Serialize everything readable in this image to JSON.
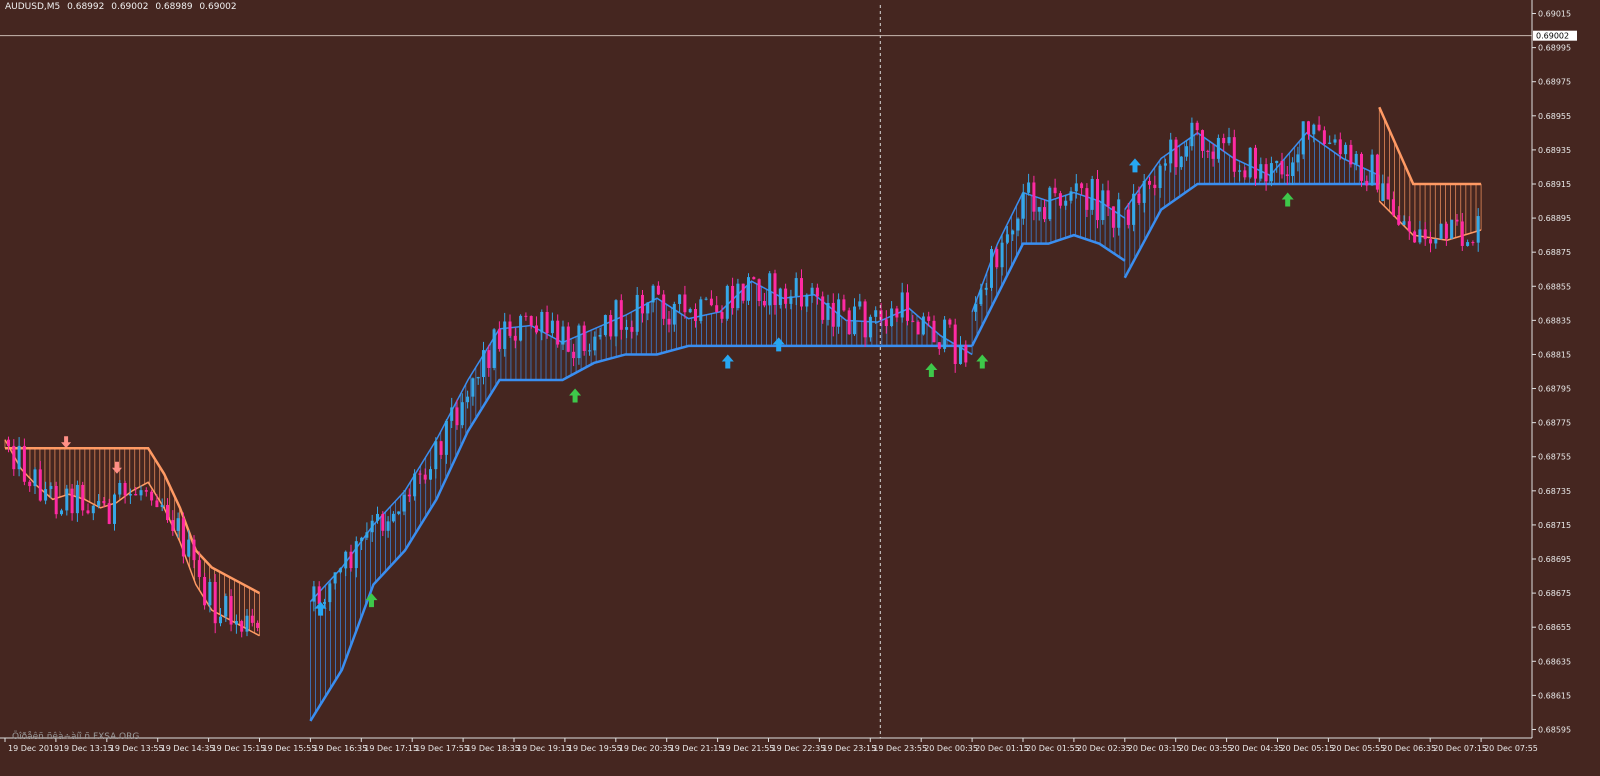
{
  "header": {
    "symbol": "AUDUSD,M5",
    "open": "0.68992",
    "high": "0.69002",
    "low": "0.68989",
    "close": "0.69002"
  },
  "watermark": "Õîðåêñ ñêà÷àíî ñ FXSA.ORG",
  "colors": {
    "background": "#452620",
    "bull_candle": "#35a8e8",
    "bear_candle": "#ff2aa3",
    "upper_band": "#ff9a64",
    "lower_band": "#3a8ef0",
    "arrow_up_green": "#3ec84a",
    "arrow_up_blue": "#27a7f2",
    "arrow_down": "#ff8f86",
    "text": "#e8e8e8"
  },
  "chart_data": {
    "type": "candlestick",
    "symbol": "AUDUSD,M5",
    "current_price": "0.69002",
    "ylim": [
      0.6859,
      0.6902
    ],
    "y_ticks": [
      "0.69015",
      "0.68995",
      "0.68975",
      "0.68955",
      "0.68935",
      "0.68915",
      "0.68895",
      "0.68875",
      "0.68855",
      "0.68835",
      "0.68815",
      "0.68795",
      "0.68775",
      "0.68755",
      "0.68735",
      "0.68715",
      "0.68695",
      "0.68675",
      "0.68655",
      "0.68635",
      "0.68615",
      "0.68595"
    ],
    "x_ticks": [
      "19 Dec 2019",
      "19 Dec 13:15",
      "19 Dec 13:55",
      "19 Dec 14:35",
      "19 Dec 15:15",
      "19 Dec 15:55",
      "19 Dec 16:35",
      "19 Dec 17:15",
      "19 Dec 17:55",
      "19 Dec 18:35",
      "19 Dec 19:15",
      "19 Dec 19:55",
      "19 Dec 20:35",
      "19 Dec 21:15",
      "19 Dec 21:55",
      "19 Dec 22:35",
      "19 Dec 23:15",
      "19 Dec 23:55",
      "20 Dec 00:35",
      "20 Dec 01:15",
      "20 Dec 01:55",
      "20 Dec 02:35",
      "20 Dec 03:15",
      "20 Dec 03:55",
      "20 Dec 04:35",
      "20 Dec 05:15",
      "20 Dec 05:55",
      "20 Dec 06:35",
      "20 Dec 07:15",
      "20 Dec 07:55"
    ],
    "grid": false,
    "crosshair_time": "19 Dec 23:55",
    "trend_bands": [
      {
        "color": "upper",
        "start": "19 Dec 2019",
        "end": "19 Dec 15:55",
        "line": [
          0.68765,
          0.68748,
          0.68738,
          0.6873,
          0.68733,
          0.6873,
          0.68725,
          0.68728,
          0.68735,
          0.6874,
          0.68725,
          0.68705,
          0.6868,
          0.68665,
          0.6866,
          0.68655,
          0.6865
        ],
        "edge": [
          0.6876,
          0.6876,
          0.6876,
          0.6876,
          0.6876,
          0.6876,
          0.6876,
          0.6876,
          0.6876,
          0.6876,
          0.68745,
          0.68725,
          0.687,
          0.6869,
          0.68685,
          0.6868,
          0.68675
        ]
      },
      {
        "color": "lower",
        "start": "19 Dec 16:35",
        "end": "20 Dec 01:15",
        "line": [
          0.6867,
          0.6869,
          0.68715,
          0.68735,
          0.68765,
          0.688,
          0.6883,
          0.68832,
          0.68822,
          0.6883,
          0.68838,
          0.68848,
          0.68836,
          0.6884,
          0.68858,
          0.68848,
          0.6885,
          0.68835,
          0.68834,
          0.68842,
          0.68826,
          0.68815
        ],
        "edge": [
          0.686,
          0.6863,
          0.6868,
          0.687,
          0.6873,
          0.6877,
          0.688,
          0.688,
          0.688,
          0.6881,
          0.68815,
          0.68815,
          0.6882,
          0.6882,
          0.6882,
          0.6882,
          0.6882,
          0.6882,
          0.6882,
          0.6882,
          0.6882,
          0.6882
        ]
      },
      {
        "color": "lower",
        "start": "20 Dec 01:15",
        "end": "20 Dec 03:15",
        "line": [
          0.6884,
          0.6888,
          0.6891,
          0.68905,
          0.6891,
          0.68905,
          0.68895
        ],
        "edge": [
          0.6882,
          0.6885,
          0.6888,
          0.6888,
          0.68885,
          0.6888,
          0.6887
        ]
      },
      {
        "color": "lower",
        "start": "20 Dec 03:15",
        "end": "20 Dec 06:35",
        "line": [
          0.689,
          0.6893,
          0.68945,
          0.6893,
          0.6892,
          0.68945,
          0.6893,
          0.6892
        ],
        "edge": [
          0.6886,
          0.689,
          0.68915,
          0.68915,
          0.68915,
          0.68915,
          0.68915,
          0.68915
        ]
      },
      {
        "color": "upper",
        "start": "20 Dec 06:35",
        "end": "20 Dec 07:55",
        "line": [
          0.68905,
          0.68885,
          0.68882,
          0.68888
        ],
        "edge": [
          0.6896,
          0.68915,
          0.68915,
          0.68915
        ]
      }
    ],
    "signals": [
      {
        "type": "down",
        "time": "19 Dec 13:15",
        "price": 0.6876
      },
      {
        "type": "down",
        "time": "19 Dec 13:55",
        "price": 0.68745
      },
      {
        "type": "up_blue",
        "time": "19 Dec 16:35",
        "price": 0.6867
      },
      {
        "type": "up_green",
        "time": "19 Dec 17:15",
        "price": 0.68675
      },
      {
        "type": "up_green",
        "time": "19 Dec 19:55",
        "price": 0.68795
      },
      {
        "type": "up_blue",
        "time": "19 Dec 21:55",
        "price": 0.68815
      },
      {
        "type": "up_blue",
        "time": "19 Dec 22:35",
        "price": 0.68825
      },
      {
        "type": "up_green",
        "time": "20 Dec 00:35",
        "price": 0.6881
      },
      {
        "type": "up_green",
        "time": "20 Dec 01:15",
        "price": 0.68815
      },
      {
        "type": "up_blue",
        "time": "20 Dec 03:15",
        "price": 0.6893
      },
      {
        "type": "up_green",
        "time": "20 Dec 05:15",
        "price": 0.6891
      }
    ]
  }
}
